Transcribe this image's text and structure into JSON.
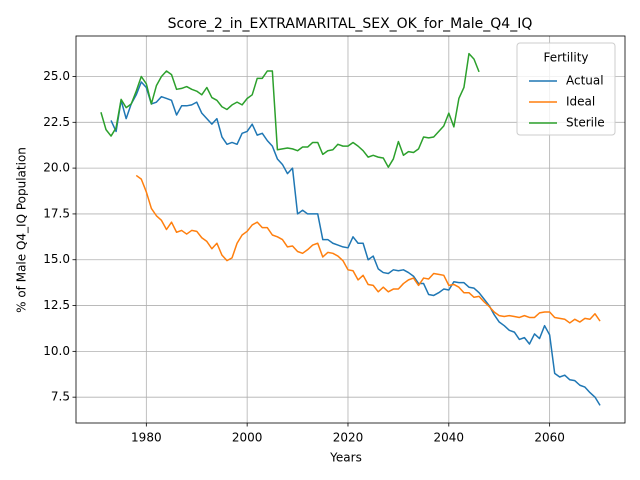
{
  "chart_data": {
    "type": "line",
    "title": "Score_2_in_EXTRAMARITAL_SEX_OK_for_Male_Q4_IQ",
    "xlabel": "Years",
    "ylabel": "% of Male Q4_IQ Population",
    "legend_title": "Fertility",
    "legend": "upper right",
    "grid": true,
    "x": [
      1971,
      1972,
      1973,
      1974,
      1975,
      1976,
      1977,
      1978,
      1979,
      1980,
      1981,
      1982,
      1983,
      1984,
      1985,
      1986,
      1987,
      1988,
      1989,
      1990,
      1991,
      1992,
      1993,
      1994,
      1995,
      1996,
      1997,
      1998,
      1999,
      2000,
      2001,
      2002,
      2003,
      2004,
      2005,
      2006,
      2007,
      2008,
      2009,
      2010,
      2011,
      2012,
      2013,
      2014,
      2015,
      2016,
      2017,
      2018,
      2019,
      2020,
      2021,
      2022,
      2023,
      2024,
      2025,
      2026,
      2027,
      2028,
      2029,
      2030,
      2031,
      2032,
      2033,
      2034,
      2035,
      2036,
      2037,
      2038,
      2039,
      2040,
      2041,
      2042,
      2043,
      2044,
      2045,
      2046,
      2047,
      2048,
      2049,
      2050,
      2051,
      2052,
      2053,
      2054,
      2055,
      2056,
      2057,
      2058,
      2059,
      2060,
      2061,
      2062,
      2063,
      2064,
      2065,
      2066,
      2067,
      2068,
      2069,
      2070
    ],
    "series": [
      {
        "name": "Actual",
        "color": "#1f77b4",
        "values": [
          null,
          null,
          22.6,
          22.0,
          23.7,
          22.7,
          23.5,
          24.0,
          24.7,
          24.4,
          23.5,
          23.6,
          23.9,
          23.8,
          23.7,
          22.9,
          23.4,
          23.4,
          23.45,
          23.6,
          23.0,
          22.7,
          22.4,
          22.7,
          21.7,
          21.3,
          21.4,
          21.3,
          21.9,
          22.0,
          22.4,
          21.8,
          21.9,
          21.5,
          21.2,
          20.5,
          20.2,
          19.7,
          20.0,
          17.5,
          17.7,
          17.5,
          17.5,
          17.5,
          16.1,
          16.1,
          15.9,
          15.8,
          15.7,
          15.65,
          16.25,
          15.9,
          15.9,
          15.0,
          15.2,
          14.5,
          14.3,
          14.25,
          14.45,
          14.4,
          14.45,
          14.3,
          14.1,
          13.7,
          13.7,
          13.1,
          13.05,
          13.2,
          13.4,
          13.35,
          13.8,
          13.75,
          13.75,
          13.5,
          13.45,
          13.2,
          12.85,
          12.5,
          12.0,
          11.6,
          11.4,
          11.15,
          11.05,
          10.65,
          10.75,
          10.4,
          10.95,
          10.7,
          11.4,
          10.9,
          8.8,
          8.6,
          8.7,
          8.45,
          8.4,
          8.15,
          8.05,
          7.75,
          7.5,
          7.05
        ]
      },
      {
        "name": "Ideal",
        "color": "#ff7f0e",
        "values": [
          null,
          null,
          null,
          null,
          null,
          null,
          null,
          19.6,
          19.4,
          18.7,
          17.8,
          17.4,
          17.15,
          16.65,
          17.05,
          16.5,
          16.6,
          16.4,
          16.6,
          16.55,
          16.2,
          16.0,
          15.6,
          15.9,
          15.25,
          14.95,
          15.1,
          15.9,
          16.35,
          16.55,
          16.9,
          17.05,
          16.75,
          16.75,
          16.35,
          16.25,
          16.1,
          15.7,
          15.75,
          15.45,
          15.35,
          15.55,
          15.8,
          15.9,
          15.15,
          15.4,
          15.35,
          15.2,
          14.95,
          14.45,
          14.4,
          13.9,
          14.15,
          13.65,
          13.6,
          13.25,
          13.5,
          13.25,
          13.4,
          13.4,
          13.7,
          13.9,
          14.0,
          13.6,
          14.0,
          13.95,
          14.25,
          14.2,
          14.15,
          13.6,
          13.65,
          13.5,
          13.2,
          13.2,
          12.95,
          13.0,
          12.7,
          12.45,
          12.15,
          11.95,
          11.9,
          11.95,
          11.9,
          11.85,
          11.95,
          11.85,
          11.85,
          12.1,
          12.15,
          12.15,
          11.85,
          11.8,
          11.75,
          11.55,
          11.75,
          11.6,
          11.8,
          11.75,
          12.05,
          11.65
        ]
      },
      {
        "name": "Sterile",
        "color": "#2ca02c",
        "values": [
          23.05,
          22.1,
          21.75,
          22.2,
          23.75,
          23.3,
          23.5,
          24.2,
          25.0,
          24.6,
          23.5,
          24.5,
          25.0,
          25.3,
          25.1,
          24.3,
          24.35,
          24.45,
          24.3,
          24.2,
          24.0,
          24.4,
          23.85,
          23.7,
          23.35,
          23.2,
          23.45,
          23.6,
          23.45,
          23.8,
          24.0,
          24.9,
          24.9,
          25.3,
          25.3,
          21.0,
          21.05,
          21.1,
          21.05,
          20.95,
          21.15,
          21.15,
          21.4,
          21.4,
          20.75,
          20.95,
          21.0,
          21.3,
          21.2,
          21.2,
          21.4,
          21.2,
          20.95,
          20.6,
          20.7,
          20.6,
          20.55,
          20.05,
          20.5,
          21.45,
          20.7,
          20.9,
          20.85,
          21.05,
          21.7,
          21.65,
          21.7,
          22.0,
          22.3,
          23.0,
          22.25,
          23.8,
          24.4,
          26.25,
          25.95,
          25.25,
          null,
          null,
          null,
          null,
          null,
          null,
          null,
          null,
          null,
          null,
          null,
          null,
          null,
          null,
          null,
          null,
          null,
          null,
          null,
          null,
          null,
          null,
          null,
          null
        ]
      }
    ],
    "xlim": [
      1966.05,
      2074.95
    ],
    "xticks": [
      1980,
      2000,
      2020,
      2040,
      2060
    ],
    "ylim": [
      6.09,
      27.21
    ],
    "yticks": [
      7.5,
      {
        "value": 10,
        "label": "10.0"
      },
      12.5,
      {
        "value": 15,
        "label": "15.0"
      },
      17.5,
      {
        "value": 20,
        "label": "20.0"
      },
      22.5,
      {
        "value": 25,
        "label": "25.0"
      }
    ]
  }
}
